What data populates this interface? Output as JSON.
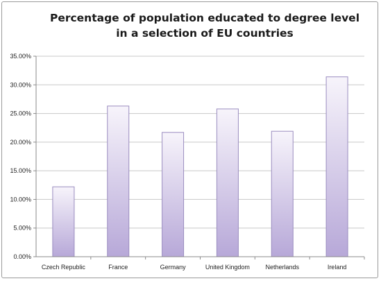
{
  "chart_data": {
    "type": "bar",
    "title": "Percentage of population educated to degree level in a selection of EU countries",
    "title_lines": [
      "Percentage of population educated to degree level",
      "in a selection of EU countries"
    ],
    "categories": [
      "Czech Republic",
      "France",
      "Germany",
      "United Kingdom",
      "Netherlands",
      "Ireland"
    ],
    "values": [
      12.2,
      26.3,
      21.7,
      25.8,
      21.9,
      31.4
    ],
    "unit": "%",
    "ylim": [
      0,
      35
    ],
    "yticks": [
      "0.00%",
      "5.00%",
      "10.00%",
      "15.00%",
      "20.00%",
      "25.00%",
      "30.00%",
      "35.00%"
    ],
    "ytick_values": [
      0,
      5,
      10,
      15,
      20,
      25,
      30,
      35
    ],
    "grid": true,
    "legend": "none",
    "colors": {
      "bar_top": "#f7f4fb",
      "bar_bottom": "#b7a8d8",
      "bar_stroke": "#9a8cbf",
      "grid": "#c8c8c8",
      "axis": "#8a8a8a"
    }
  }
}
